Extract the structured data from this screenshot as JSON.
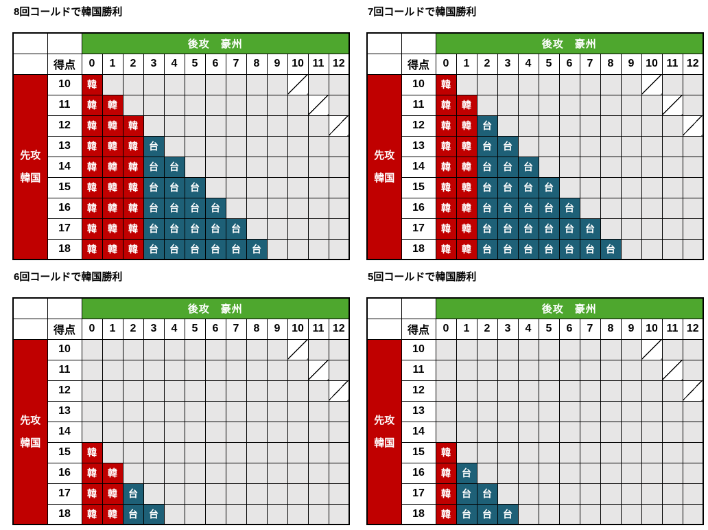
{
  "colors": {
    "korea_red": "#C00000",
    "opponent_teal": "#1E6077",
    "header_green": "#4EA72E",
    "empty_gray": "#E7E6E6",
    "grid_border": "#000000",
    "mark_text": "#FFFFFF",
    "tie_cell_white": "#FFFFFF"
  },
  "shared": {
    "visitor_header": "後攻　豪州",
    "score_header": "得点",
    "home_header_line1": "先攻",
    "home_header_line2": "韓国",
    "korea_mark": "韓",
    "opponent_mark": "台",
    "columns": [
      "0",
      "1",
      "2",
      "3",
      "4",
      "5",
      "6",
      "7",
      "8",
      "9",
      "10",
      "11",
      "12"
    ],
    "row_scores": [
      "10",
      "11",
      "12",
      "13",
      "14",
      "15",
      "16",
      "17",
      "18"
    ],
    "tie_diagonal_scores": [
      10,
      11,
      12
    ]
  },
  "chart_data": [
    {
      "type": "table",
      "title": "8回コールドで韓国勝利",
      "rows": [
        {
          "score": 10,
          "marks": [
            "韓"
          ]
        },
        {
          "score": 11,
          "marks": [
            "韓",
            "韓"
          ]
        },
        {
          "score": 12,
          "marks": [
            "韓",
            "韓",
            "韓"
          ]
        },
        {
          "score": 13,
          "marks": [
            "韓",
            "韓",
            "韓",
            "台"
          ]
        },
        {
          "score": 14,
          "marks": [
            "韓",
            "韓",
            "韓",
            "台",
            "台"
          ]
        },
        {
          "score": 15,
          "marks": [
            "韓",
            "韓",
            "韓",
            "台",
            "台",
            "台"
          ]
        },
        {
          "score": 16,
          "marks": [
            "韓",
            "韓",
            "韓",
            "台",
            "台",
            "台",
            "台"
          ]
        },
        {
          "score": 17,
          "marks": [
            "韓",
            "韓",
            "韓",
            "台",
            "台",
            "台",
            "台",
            "台"
          ]
        },
        {
          "score": 18,
          "marks": [
            "韓",
            "韓",
            "韓",
            "台",
            "台",
            "台",
            "台",
            "台",
            "台"
          ]
        }
      ]
    },
    {
      "type": "table",
      "title": "7回コールドで韓国勝利",
      "rows": [
        {
          "score": 10,
          "marks": [
            "韓"
          ]
        },
        {
          "score": 11,
          "marks": [
            "韓",
            "韓"
          ]
        },
        {
          "score": 12,
          "marks": [
            "韓",
            "韓",
            "台"
          ]
        },
        {
          "score": 13,
          "marks": [
            "韓",
            "韓",
            "台",
            "台"
          ]
        },
        {
          "score": 14,
          "marks": [
            "韓",
            "韓",
            "台",
            "台",
            "台"
          ]
        },
        {
          "score": 15,
          "marks": [
            "韓",
            "韓",
            "台",
            "台",
            "台",
            "台"
          ]
        },
        {
          "score": 16,
          "marks": [
            "韓",
            "韓",
            "台",
            "台",
            "台",
            "台",
            "台"
          ]
        },
        {
          "score": 17,
          "marks": [
            "韓",
            "韓",
            "台",
            "台",
            "台",
            "台",
            "台",
            "台"
          ]
        },
        {
          "score": 18,
          "marks": [
            "韓",
            "韓",
            "台",
            "台",
            "台",
            "台",
            "台",
            "台",
            "台"
          ]
        }
      ]
    },
    {
      "type": "table",
      "title": "6回コールドで韓国勝利",
      "rows": [
        {
          "score": 10,
          "marks": []
        },
        {
          "score": 11,
          "marks": []
        },
        {
          "score": 12,
          "marks": []
        },
        {
          "score": 13,
          "marks": []
        },
        {
          "score": 14,
          "marks": []
        },
        {
          "score": 15,
          "marks": [
            "韓"
          ]
        },
        {
          "score": 16,
          "marks": [
            "韓",
            "韓"
          ]
        },
        {
          "score": 17,
          "marks": [
            "韓",
            "韓",
            "台"
          ]
        },
        {
          "score": 18,
          "marks": [
            "韓",
            "韓",
            "台",
            "台"
          ]
        }
      ]
    },
    {
      "type": "table",
      "title": "5回コールドで韓国勝利",
      "rows": [
        {
          "score": 10,
          "marks": []
        },
        {
          "score": 11,
          "marks": []
        },
        {
          "score": 12,
          "marks": []
        },
        {
          "score": 13,
          "marks": []
        },
        {
          "score": 14,
          "marks": []
        },
        {
          "score": 15,
          "marks": [
            "韓"
          ]
        },
        {
          "score": 16,
          "marks": [
            "韓",
            "台"
          ]
        },
        {
          "score": 17,
          "marks": [
            "韓",
            "台",
            "台"
          ]
        },
        {
          "score": 18,
          "marks": [
            "韓",
            "台",
            "台",
            "台"
          ]
        }
      ]
    }
  ]
}
